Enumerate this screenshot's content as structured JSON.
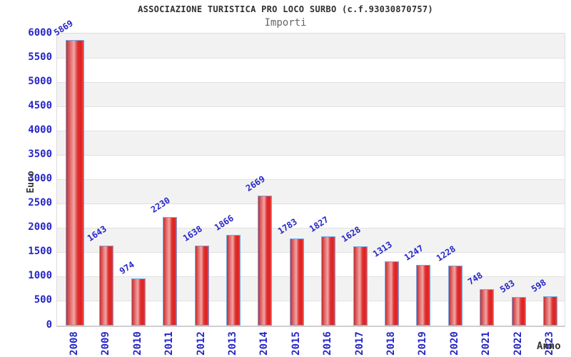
{
  "chart_data": {
    "type": "bar",
    "title": "ASSOCIAZIONE TURISTICA PRO LOCO SURBO (c.f.93030870757)",
    "subtitle": "Importi",
    "xlabel": "Anno",
    "ylabel": "Euro",
    "categories": [
      "2008",
      "2009",
      "2010",
      "2011",
      "2012",
      "2013",
      "2014",
      "2015",
      "2016",
      "2017",
      "2018",
      "2019",
      "2020",
      "2021",
      "2022",
      "2023"
    ],
    "values": [
      5869,
      1643,
      974,
      2230,
      1638,
      1866,
      2669,
      1783,
      1827,
      1628,
      1313,
      1247,
      1228,
      748,
      583,
      598
    ],
    "ylim": [
      0,
      6000
    ],
    "ytick_step": 500,
    "ytick_labels": [
      "6000",
      "5500",
      "5000",
      "4500",
      "4000",
      "3500",
      "3000",
      "2500",
      "2000",
      "1500",
      "1000",
      "500",
      "0"
    ],
    "legend": null,
    "grid": "horizontal-bands",
    "colors": {
      "label_blue": "#2626c9",
      "bar_red": "#e01f1f",
      "bar_highlight": "#f2a5a5",
      "bar_border": "#6fa8e8",
      "band_gray": "#f2f2f2",
      "grid_line": "#e1e1e1",
      "title_dark": "#2f2f2f",
      "subtitle_gray": "#666666"
    }
  }
}
